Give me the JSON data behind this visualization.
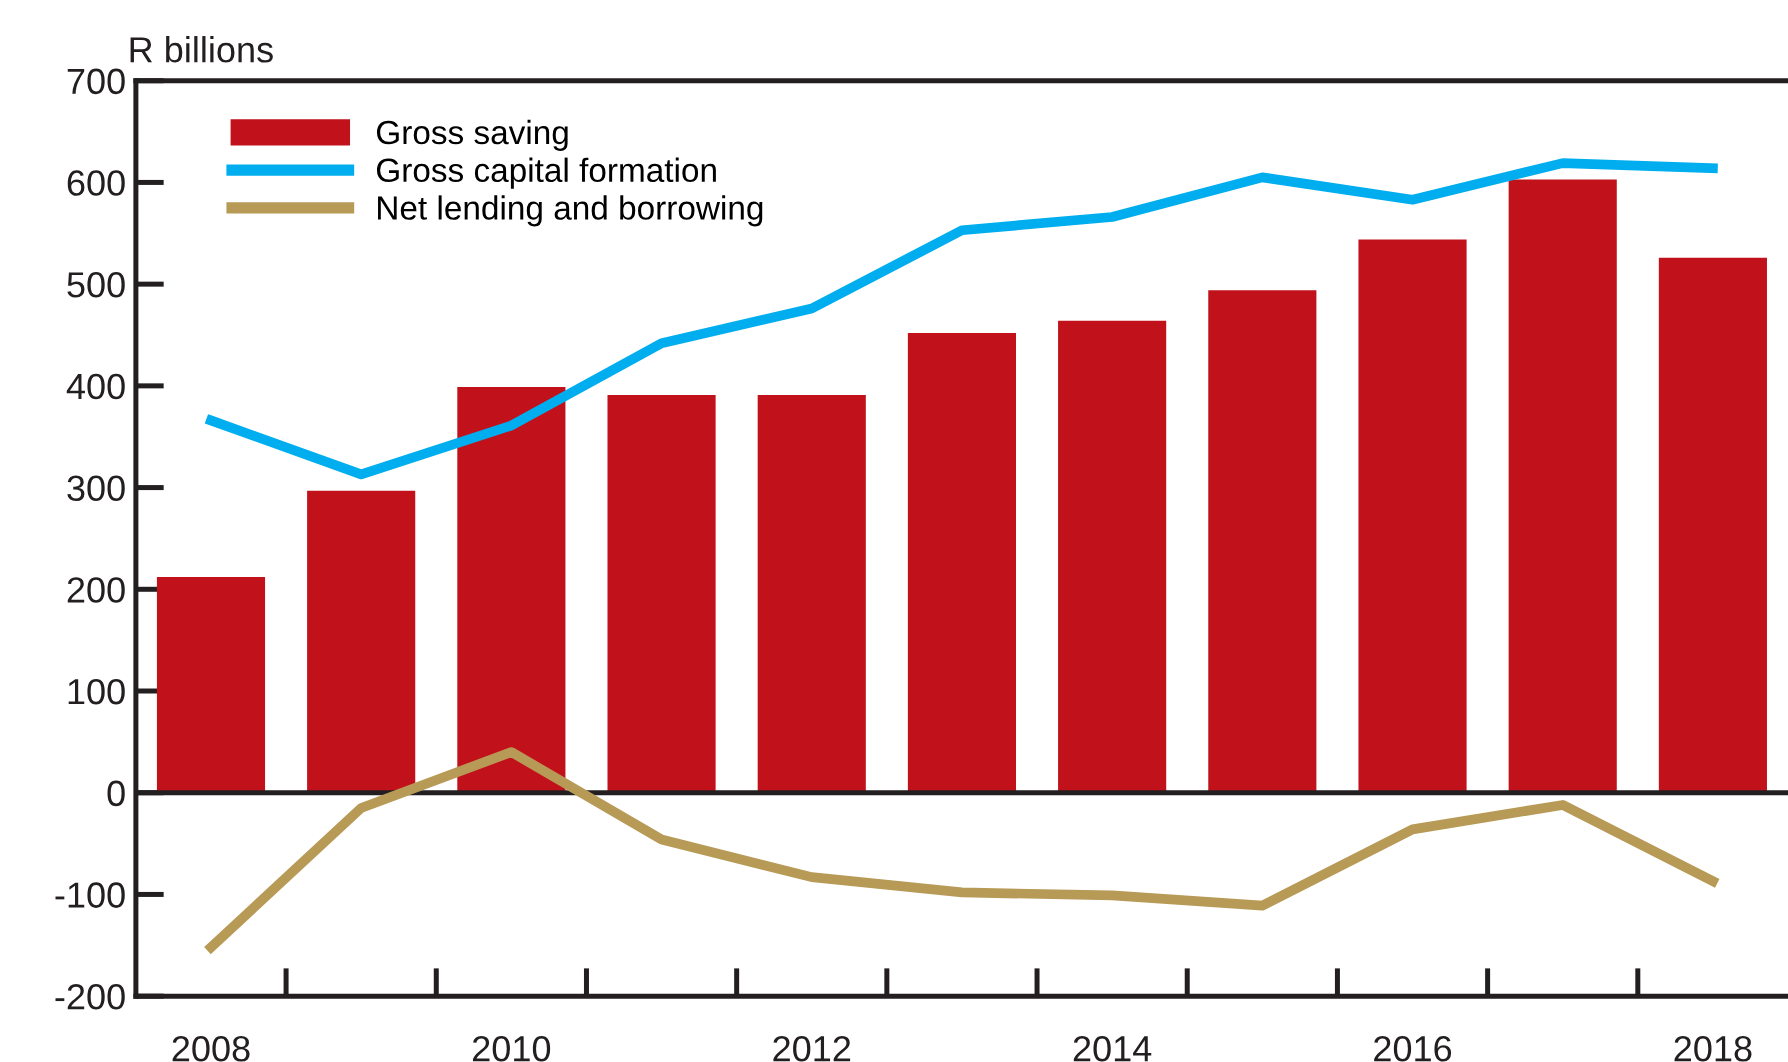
{
  "chart_data": {
    "type": "bar",
    "ylabel": "R billions",
    "categories": [
      "2008",
      null,
      "2010",
      null,
      "2012",
      null,
      "2014",
      null,
      "2016",
      null,
      "2018"
    ],
    "series": [
      {
        "name": "Gross saving",
        "color": "#c1121c",
        "values": [
          212,
          297,
          399,
          391,
          391,
          452,
          464,
          494,
          544,
          603,
          526
        ]
      },
      {
        "name": "Gross capital formation",
        "type": "line",
        "color": "#00aeef",
        "values": [
          366,
          313,
          361,
          442,
          476,
          553,
          566,
          605,
          583,
          619,
          614
        ]
      },
      {
        "name": "Net lending and borrowing",
        "type": "line",
        "color": "#b89a57",
        "values": [
          -152,
          -15,
          40,
          -46,
          -83,
          -98,
          -101,
          -111,
          -36,
          -12,
          -87
        ]
      }
    ],
    "ylim": [
      -200,
      700
    ],
    "yticks": [
      -200,
      -100,
      0,
      100,
      200,
      300,
      400,
      500,
      600,
      700
    ],
    "ref_lines": [
      {
        "axis": "y",
        "value": 0,
        "color": "#231f20"
      }
    ],
    "grid": false,
    "legend": "top left",
    "marker": "none",
    "line_style": "solid"
  }
}
